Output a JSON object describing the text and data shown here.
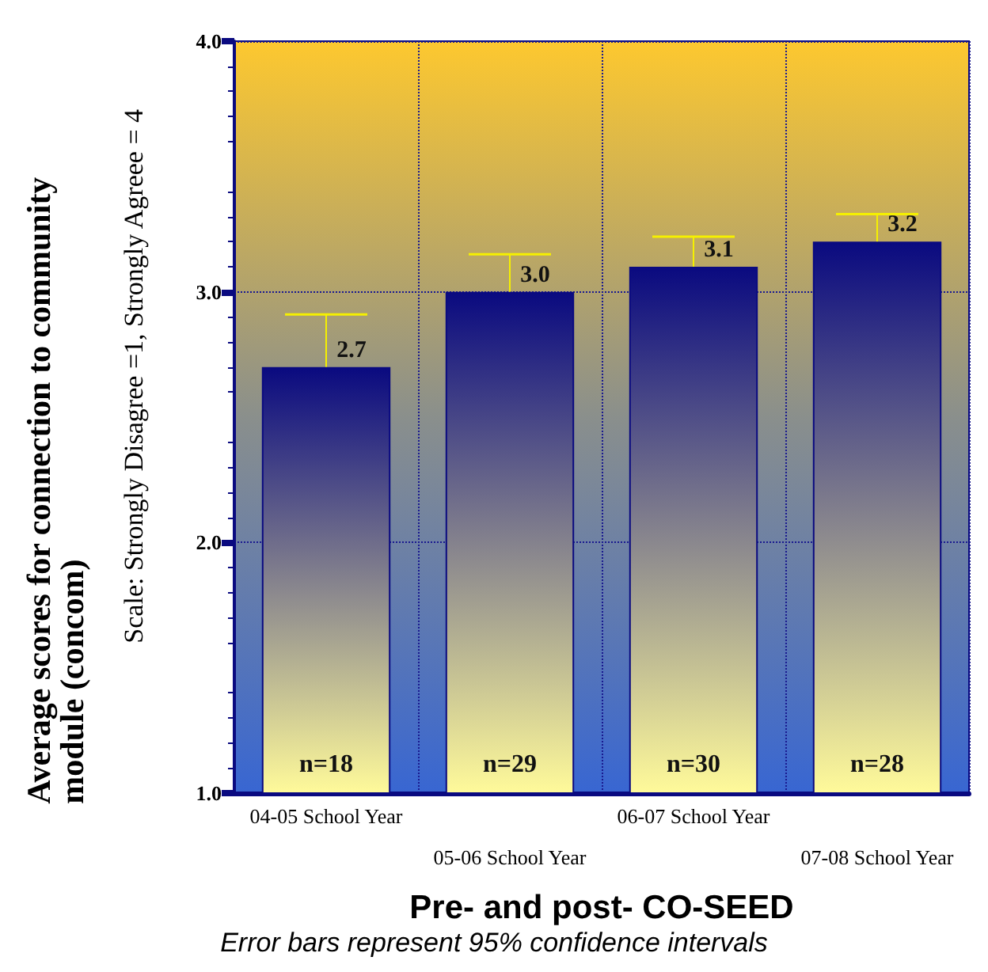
{
  "chart_data": {
    "type": "bar",
    "xlabel": "Pre- and post- CO-SEED",
    "ylabel": "Average scores for connection to community module (concom)",
    "categories": [
      "04-05 School Year",
      "05-06 School Year",
      "06-07 School Year",
      "07-08 School Year"
    ],
    "values": [
      2.7,
      3.0,
      3.1,
      3.2
    ],
    "color": "#0a0a80",
    "errors": [
      0.21,
      0.15,
      0.12,
      0.11
    ],
    "value_labels": [
      "2.7",
      "3.0",
      "3.1",
      "3.2"
    ],
    "ylim": [
      1,
      4
    ],
    "yticks": [
      {
        "value": 1,
        "label": "1.0"
      },
      {
        "value": 2,
        "label": "2.0"
      },
      {
        "value": 3,
        "label": "3.0"
      },
      {
        "value": 4,
        "label": "4.0"
      }
    ],
    "grid": true,
    "annotations": [
      "Scale: Strongly Disagree =1, Strongly Agreee = 4",
      "Error bars represent 95% confidence intervals",
      "n=18",
      "n=29",
      "n=30",
      "n=28"
    ]
  }
}
